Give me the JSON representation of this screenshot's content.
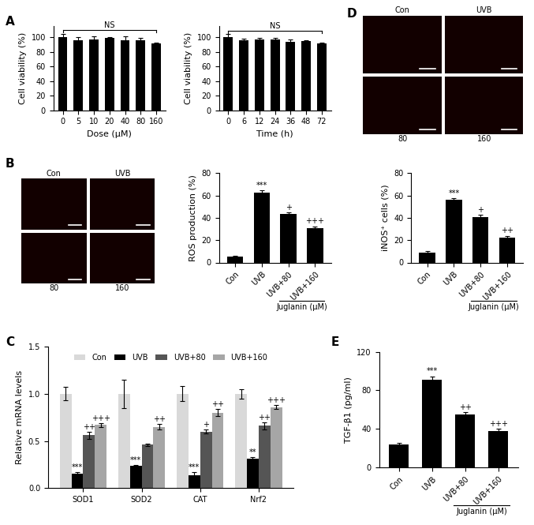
{
  "chart_data": [
    {
      "panel": "A",
      "type": "bar",
      "x_label": "Dose (μM)",
      "y_label": "Cell viability (%)",
      "categories": [
        "0",
        "5",
        "10",
        "20",
        "40",
        "80",
        "160"
      ],
      "values": [
        100,
        96,
        97,
        99,
        96,
        96,
        91
      ],
      "errors": [
        5,
        4,
        4,
        1.5,
        5,
        3,
        1.5
      ],
      "bracket_label": "NS",
      "color": "#000000",
      "ylim": [
        0,
        115
      ],
      "yticks": [
        0,
        20,
        40,
        60,
        80,
        100
      ]
    },
    {
      "type": "bar",
      "x_label": "Time (h)",
      "y_label": "Cell viability (%)",
      "categories": [
        "0",
        "6",
        "12",
        "24",
        "36",
        "48",
        "72"
      ],
      "values": [
        100,
        96,
        97,
        97,
        94,
        95,
        91
      ],
      "errors": [
        4,
        2,
        2,
        2,
        3,
        1,
        1.5
      ],
      "bracket_label": "NS",
      "color": "#000000",
      "ylim": [
        0,
        115
      ],
      "yticks": [
        0,
        20,
        40,
        60,
        80,
        100
      ]
    },
    {
      "type": "bar",
      "y_label": "ROS production (%)",
      "categories": [
        "Con",
        "UVB",
        "UVB+80",
        "UVB+160"
      ],
      "values": [
        5,
        62.5,
        43.5,
        30.5
      ],
      "errors": [
        1,
        2,
        1.5,
        2
      ],
      "annotations": [
        null,
        "***",
        "+",
        "+++"
      ],
      "group_label": "Juglanin (μM)",
      "group_categories": [
        "UVB+80",
        "UVB+160"
      ],
      "color": "#000000",
      "ylim": [
        0,
        80
      ],
      "yticks": [
        0,
        20,
        40,
        60,
        80
      ]
    },
    {
      "type": "bar",
      "y_label": "iNOS⁺ cells (%)",
      "categories": [
        "Con",
        "UVB",
        "UVB+80",
        "UVB+160"
      ],
      "values": [
        8.5,
        56,
        40.5,
        22.5
      ],
      "errors": [
        1.5,
        1.5,
        2.5,
        1.5
      ],
      "annotations": [
        null,
        "***",
        "+",
        "++"
      ],
      "group_label": "Juglanin (μM)",
      "group_categories": [
        "UVB+80",
        "UVB+160"
      ],
      "color": "#000000",
      "ylim": [
        0,
        80
      ],
      "yticks": [
        0,
        20,
        40,
        60,
        80
      ]
    },
    {
      "panel": "C",
      "type": "grouped_bar",
      "y_label": "Relative mRNA levels",
      "categories": [
        "SOD1",
        "SOD2",
        "CAT",
        "Nrf2"
      ],
      "legend": "upper center",
      "series": [
        {
          "name": "Con",
          "color": "#d9d9d9",
          "values": [
            1.0,
            1.0,
            1.0,
            1.0
          ],
          "errors": [
            0.07,
            0.15,
            0.08,
            0.05
          ],
          "annotations": [
            null,
            null,
            null,
            null
          ]
        },
        {
          "name": "UVB",
          "color": "#000000",
          "values": [
            0.15,
            0.24,
            0.14,
            0.31
          ],
          "errors": [
            0.02,
            0.01,
            0.03,
            0.02
          ],
          "annotations": [
            "***",
            "***",
            "***",
            "**"
          ]
        },
        {
          "name": "UVB+80",
          "color": "#555555",
          "values": [
            0.56,
            0.46,
            0.6,
            0.66
          ],
          "errors": [
            0.04,
            0.01,
            0.02,
            0.04
          ],
          "annotations": [
            "++",
            null,
            "+",
            "++"
          ]
        },
        {
          "name": "UVB+160",
          "color": "#a6a6a6",
          "values": [
            0.67,
            0.65,
            0.8,
            0.86
          ],
          "errors": [
            0.02,
            0.03,
            0.04,
            0.02
          ],
          "annotations": [
            "+++",
            "++",
            "++",
            "+++"
          ]
        }
      ],
      "ylim": [
        0,
        1.5
      ],
      "yticks": [
        {
          "value": 0,
          "label": "0.0"
        },
        {
          "value": 0.5,
          "label": "0.5"
        },
        {
          "value": 1.0,
          "label": "1.0"
        },
        {
          "value": 1.5,
          "label": "1.5"
        }
      ]
    },
    {
      "panel": "E",
      "type": "bar",
      "y_label": "TGF-β1 (pg/ml)",
      "categories": [
        "Con",
        "UVB",
        "UVB+80",
        "UVB+160"
      ],
      "values": [
        23.5,
        91,
        55,
        38
      ],
      "errors": [
        1.5,
        3.5,
        2,
        2
      ],
      "annotations": [
        null,
        "***",
        "++",
        "+++"
      ],
      "group_label": "Juglanin (μM)",
      "group_categories": [
        "UVB+80",
        "UVB+160"
      ],
      "color": "#000000",
      "ylim": [
        0,
        120
      ],
      "yticks": [
        0,
        40,
        80,
        120
      ]
    }
  ],
  "image_panels": [
    {
      "panel": "B",
      "labels": [
        "Con",
        "UVB",
        "80",
        "160"
      ]
    },
    {
      "panel": "D",
      "labels": [
        "Con",
        "UVB",
        "80",
        "160"
      ]
    }
  ]
}
